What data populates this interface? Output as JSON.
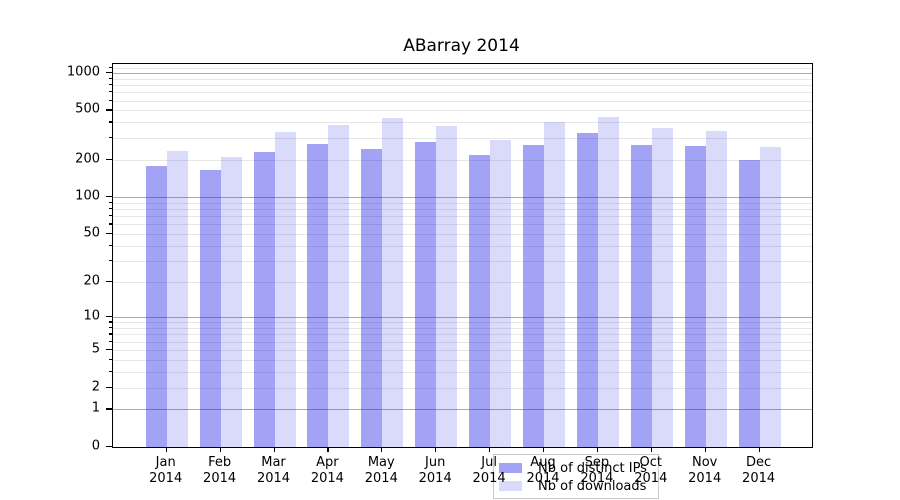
{
  "title": "ABarray 2014",
  "chart_data": {
    "type": "bar",
    "title": "ABarray 2014",
    "categories": [
      "Jan 2014",
      "Feb 2014",
      "Mar 2014",
      "Apr 2014",
      "May 2014",
      "Jun 2014",
      "Jul 2014",
      "Aug 2014",
      "Sep 2014",
      "Oct 2014",
      "Nov 2014",
      "Dec 2014"
    ],
    "months": [
      "Jan",
      "Feb",
      "Mar",
      "Apr",
      "May",
      "Jun",
      "Jul",
      "Aug",
      "Sep",
      "Oct",
      "Nov",
      "Dec"
    ],
    "year": "2014",
    "series": [
      {
        "name": "Nb of distinct IPs",
        "color": "#a3a3f5",
        "values": [
          178,
          166,
          233,
          268,
          245,
          281,
          220,
          266,
          327,
          262,
          259,
          200
        ]
      },
      {
        "name": "Nb of downloads",
        "color": "#dadafb",
        "values": [
          236,
          211,
          335,
          385,
          432,
          377,
          291,
          406,
          440,
          361,
          344,
          253
        ]
      }
    ],
    "yscale": "log10(v+1)",
    "ylim": [
      0,
      1180
    ],
    "yticks": [
      0,
      1,
      2,
      5,
      10,
      20,
      50,
      100,
      200,
      500,
      1000
    ],
    "gridlines": {
      "major": [
        1,
        10,
        100,
        1000
      ],
      "minor": [
        2,
        3,
        4,
        5,
        6,
        7,
        8,
        9,
        20,
        30,
        40,
        50,
        60,
        70,
        80,
        90,
        200,
        300,
        400,
        500,
        600,
        700,
        800,
        900,
        1100
      ]
    },
    "grid": "both",
    "legend_position": "lower-center-inside",
    "xlabel": "",
    "ylabel": ""
  },
  "colors": {
    "series_ips": "#a3a3f5",
    "series_downloads": "#dadafb",
    "major_grid": "#ababab",
    "minor_grid": "#e7e7e7",
    "axis": "#000000"
  }
}
